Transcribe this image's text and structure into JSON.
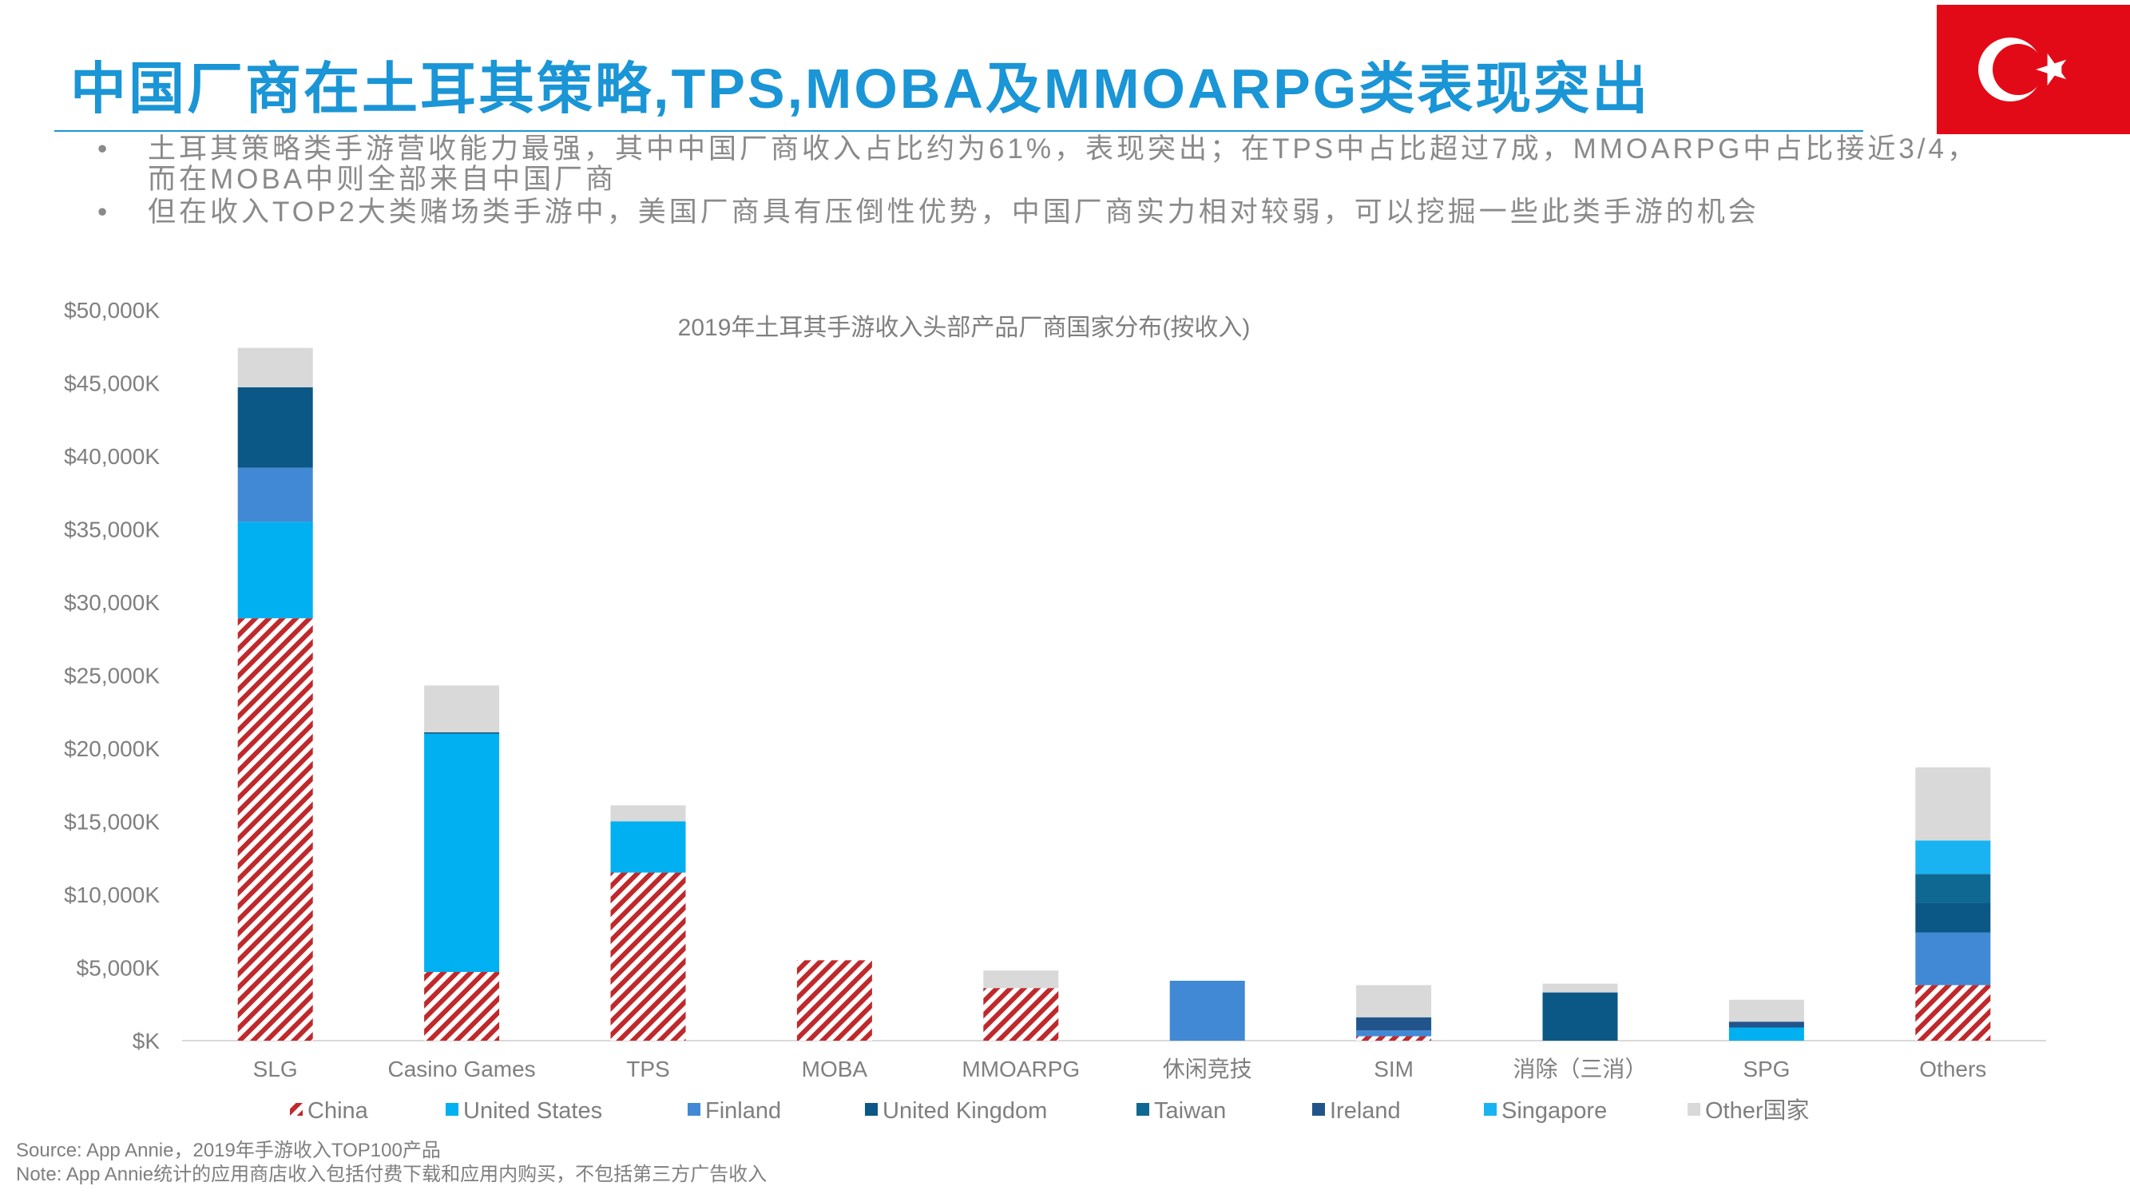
{
  "header": {
    "title": "中国厂商在土耳其策略,TPS,MOBA及MMOARPG类表现突出"
  },
  "flag": {
    "name": "turkey-flag-icon",
    "background": "#e30a17",
    "symbol": "#ffffff"
  },
  "bullets": [
    {
      "text": "土耳其策略类手游营收能力最强，其中中国厂商收入占比约为61%，表现突出；在TPS中占比超过7成，MMOARPG中占比接近3/4，\n而在MOBA中则全部来自中国厂商"
    },
    {
      "text": "但在收入TOP2大类赌场类手游中，美国厂商具有压倒性优势，中国厂商实力相对较弱，可以挖掘一些此类手游的机会"
    }
  ],
  "bullet_symbol": "•",
  "chart_data": {
    "type": "bar",
    "stacked": true,
    "title": "2019年土耳其手游收入头部产品厂商国家分布(按收入)",
    "xlabel": "",
    "ylabel": "",
    "ylim": [
      0,
      50000
    ],
    "yticks": [
      0,
      5000,
      10000,
      15000,
      20000,
      25000,
      30000,
      35000,
      40000,
      45000,
      50000
    ],
    "ytick_labels": [
      "$K",
      "$5,000K",
      "$10,000K",
      "$15,000K",
      "$20,000K",
      "$25,000K",
      "$30,000K",
      "$35,000K",
      "$40,000K",
      "$45,000K",
      "$50,000K"
    ],
    "grid": false,
    "legend_position": "bottom",
    "categories": [
      "SLG",
      "Casino Games",
      "TPS",
      "MOBA",
      "MMOARPG",
      "休闲竞技",
      "SIM",
      "消除（三消）",
      "SPG",
      "Others"
    ],
    "series": [
      {
        "name": "China",
        "color": "#c0292c",
        "pattern": "hatch",
        "values": [
          28900,
          4700,
          11500,
          5500,
          3600,
          0,
          300,
          0,
          0,
          3800
        ]
      },
      {
        "name": "United States",
        "color": "#00b0f0",
        "values": [
          6600,
          16300,
          3500,
          0,
          0,
          0,
          0,
          0,
          900,
          0
        ]
      },
      {
        "name": "Finland",
        "color": "#4189d4",
        "values": [
          3700,
          0,
          0,
          0,
          0,
          4100,
          400,
          0,
          0,
          3600
        ]
      },
      {
        "name": "United Kingdom",
        "color": "#0b5785",
        "values": [
          5500,
          100,
          0,
          0,
          0,
          0,
          0,
          3300,
          0,
          2000
        ]
      },
      {
        "name": "Taiwan",
        "color": "#0f6891",
        "values": [
          0,
          0,
          0,
          0,
          0,
          0,
          0,
          0,
          0,
          2000
        ]
      },
      {
        "name": "Ireland",
        "color": "#21548b",
        "values": [
          0,
          0,
          0,
          0,
          0,
          0,
          900,
          0,
          400,
          0
        ]
      },
      {
        "name": "Singapore",
        "color": "#1ab3f1",
        "values": [
          0,
          0,
          0,
          0,
          0,
          0,
          0,
          0,
          0,
          2300
        ]
      },
      {
        "name": "Other国家",
        "color": "#d9d9d9",
        "values": [
          2700,
          3200,
          1100,
          0,
          1200,
          0,
          2200,
          600,
          1500,
          5000
        ]
      }
    ]
  },
  "footnotes": {
    "source": "Source: App Annie，2019年手游收入TOP100产品",
    "note": "Note: App Annie统计的应用商店收入包括付费下载和应用内购买，不包括第三方广告收入"
  }
}
